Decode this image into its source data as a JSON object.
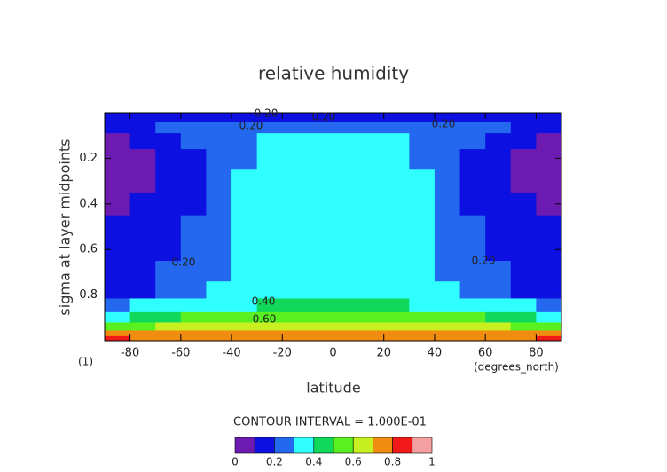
{
  "chart_data": {
    "type": "contour",
    "title": "relative humidity",
    "x_label": "latitude",
    "y_label": "sigma at layer midpoints",
    "x_units": "(degrees_north)",
    "y_units": "(1)",
    "note": "CONTOUR INTERVAL = 1.000E-01",
    "xlim": [
      -90,
      90
    ],
    "xticks": [
      -80,
      -60,
      -40,
      -20,
      0,
      20,
      40,
      60,
      80
    ],
    "ylim": [
      1,
      0
    ],
    "yticks": [
      0.2,
      0.4,
      0.6,
      0.8
    ],
    "x": [
      -85,
      -75,
      -65,
      -55,
      -45,
      -35,
      -25,
      -15,
      -5,
      5,
      15,
      25,
      35,
      45,
      55,
      65,
      75,
      85
    ],
    "y": [
      0.02,
      0.06,
      0.12,
      0.2,
      0.3,
      0.4,
      0.5,
      0.6,
      0.7,
      0.78,
      0.85,
      0.9,
      0.94,
      0.97,
      0.99
    ],
    "z": [
      [
        0.15,
        0.15,
        0.15,
        0.15,
        0.15,
        0.15,
        0.15,
        0.15,
        0.15,
        0.15,
        0.15,
        0.15,
        0.15,
        0.15,
        0.15,
        0.15,
        0.15,
        0.15
      ],
      [
        0.15,
        0.15,
        0.25,
        0.25,
        0.25,
        0.25,
        0.25,
        0.25,
        0.25,
        0.25,
        0.25,
        0.25,
        0.25,
        0.25,
        0.25,
        0.25,
        0.15,
        0.15
      ],
      [
        0.08,
        0.15,
        0.15,
        0.25,
        0.25,
        0.25,
        0.35,
        0.35,
        0.35,
        0.35,
        0.35,
        0.35,
        0.25,
        0.25,
        0.25,
        0.15,
        0.15,
        0.08
      ],
      [
        0.05,
        0.05,
        0.15,
        0.15,
        0.25,
        0.25,
        0.35,
        0.35,
        0.35,
        0.35,
        0.35,
        0.35,
        0.25,
        0.25,
        0.15,
        0.15,
        0.05,
        0.05
      ],
      [
        0.05,
        0.08,
        0.15,
        0.15,
        0.25,
        0.35,
        0.35,
        0.35,
        0.35,
        0.35,
        0.35,
        0.35,
        0.35,
        0.25,
        0.15,
        0.15,
        0.08,
        0.05
      ],
      [
        0.08,
        0.15,
        0.15,
        0.15,
        0.25,
        0.35,
        0.35,
        0.35,
        0.35,
        0.35,
        0.35,
        0.35,
        0.35,
        0.25,
        0.15,
        0.15,
        0.15,
        0.08
      ],
      [
        0.15,
        0.15,
        0.15,
        0.25,
        0.25,
        0.35,
        0.35,
        0.35,
        0.35,
        0.35,
        0.35,
        0.35,
        0.35,
        0.25,
        0.25,
        0.15,
        0.15,
        0.15
      ],
      [
        0.15,
        0.15,
        0.15,
        0.25,
        0.25,
        0.35,
        0.35,
        0.35,
        0.35,
        0.35,
        0.35,
        0.35,
        0.35,
        0.25,
        0.25,
        0.15,
        0.15,
        0.15
      ],
      [
        0.15,
        0.15,
        0.25,
        0.25,
        0.25,
        0.35,
        0.35,
        0.35,
        0.35,
        0.35,
        0.35,
        0.35,
        0.35,
        0.25,
        0.25,
        0.25,
        0.15,
        0.15
      ],
      [
        0.15,
        0.15,
        0.25,
        0.25,
        0.35,
        0.35,
        0.35,
        0.35,
        0.35,
        0.35,
        0.35,
        0.35,
        0.35,
        0.35,
        0.25,
        0.25,
        0.15,
        0.15
      ],
      [
        0.25,
        0.35,
        0.35,
        0.35,
        0.35,
        0.35,
        0.45,
        0.45,
        0.45,
        0.45,
        0.45,
        0.45,
        0.35,
        0.35,
        0.35,
        0.35,
        0.35,
        0.25
      ],
      [
        0.35,
        0.45,
        0.45,
        0.55,
        0.55,
        0.55,
        0.55,
        0.55,
        0.55,
        0.55,
        0.55,
        0.55,
        0.55,
        0.55,
        0.55,
        0.45,
        0.45,
        0.35
      ],
      [
        0.55,
        0.55,
        0.65,
        0.65,
        0.65,
        0.65,
        0.65,
        0.65,
        0.65,
        0.65,
        0.65,
        0.65,
        0.65,
        0.65,
        0.65,
        0.65,
        0.55,
        0.55
      ],
      [
        0.75,
        0.75,
        0.75,
        0.75,
        0.75,
        0.75,
        0.75,
        0.75,
        0.75,
        0.75,
        0.75,
        0.75,
        0.75,
        0.75,
        0.75,
        0.75,
        0.75,
        0.75
      ],
      [
        0.85,
        0.75,
        0.75,
        0.75,
        0.75,
        0.75,
        0.75,
        0.75,
        0.75,
        0.75,
        0.75,
        0.75,
        0.75,
        0.75,
        0.75,
        0.75,
        0.75,
        0.85
      ]
    ],
    "levels": [
      0,
      0.1,
      0.2,
      0.3,
      0.4,
      0.5,
      0.6,
      0.7,
      0.8,
      0.9,
      1
    ],
    "colors": [
      "#6c1ab0",
      "#0c10e0",
      "#2468f0",
      "#30ffff",
      "#10d85a",
      "#58f020",
      "#c8f020",
      "#f08c10",
      "#f01818",
      "#f4a0a0"
    ],
    "colorbar_ticks": [
      0,
      0.2,
      0.4,
      0.6,
      0.8,
      1
    ],
    "contour_labels": [
      {
        "value": 0.2,
        "label": "0.20"
      },
      {
        "value": 0.2,
        "label": "0.20"
      },
      {
        "value": 0.2,
        "label": "0.20"
      },
      {
        "value": 0.2,
        "label": "0.20"
      },
      {
        "value": 0.2,
        "label": "0.20"
      },
      {
        "value": 0.2,
        "label": "0.20"
      },
      {
        "value": 0.4,
        "label": "0.40"
      },
      {
        "value": 0.6,
        "label": "0.60"
      }
    ]
  }
}
